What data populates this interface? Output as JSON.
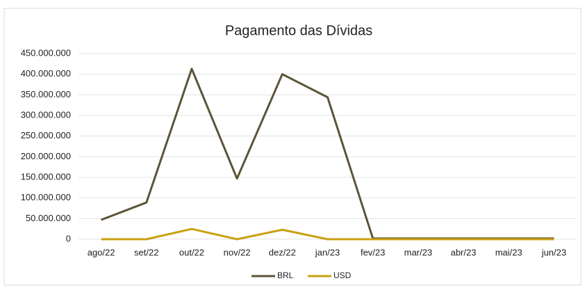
{
  "chart_data": {
    "type": "line",
    "title": "Pagamento das Dívidas",
    "categories": [
      "ago/22",
      "set/22",
      "out/22",
      "nov/22",
      "dez/22",
      "jan/23",
      "fev/23",
      "mar/23",
      "abr/23",
      "mai/23",
      "jun/23"
    ],
    "series": [
      {
        "name": "BRL",
        "color": "#5b5437",
        "values": [
          47000000,
          89000000,
          413000000,
          147000000,
          400000000,
          344000000,
          2000000,
          2000000,
          2000000,
          2000000,
          2000000
        ]
      },
      {
        "name": "USD",
        "color": "#c9a012",
        "values": [
          0,
          0,
          25000000,
          0,
          23000000,
          0,
          0,
          0,
          0,
          0,
          0
        ]
      }
    ],
    "ylim": [
      0,
      450000000
    ],
    "yticks": [
      0,
      {
        "value": 50000000,
        "label": "50.000.000"
      },
      {
        "value": 100000000,
        "label": "100.000.000"
      },
      {
        "value": 150000000,
        "label": "150.000.000"
      },
      {
        "value": 200000000,
        "label": "200.000.000"
      },
      {
        "value": 250000000,
        "label": "250.000.000"
      },
      {
        "value": 300000000,
        "label": "300.000.000"
      },
      {
        "value": 350000000,
        "label": "350.000.000"
      },
      {
        "value": 400000000,
        "label": "400.000.000"
      },
      {
        "value": 450000000,
        "label": "450.000.000"
      }
    ],
    "grid": true,
    "legend": "bottom"
  }
}
